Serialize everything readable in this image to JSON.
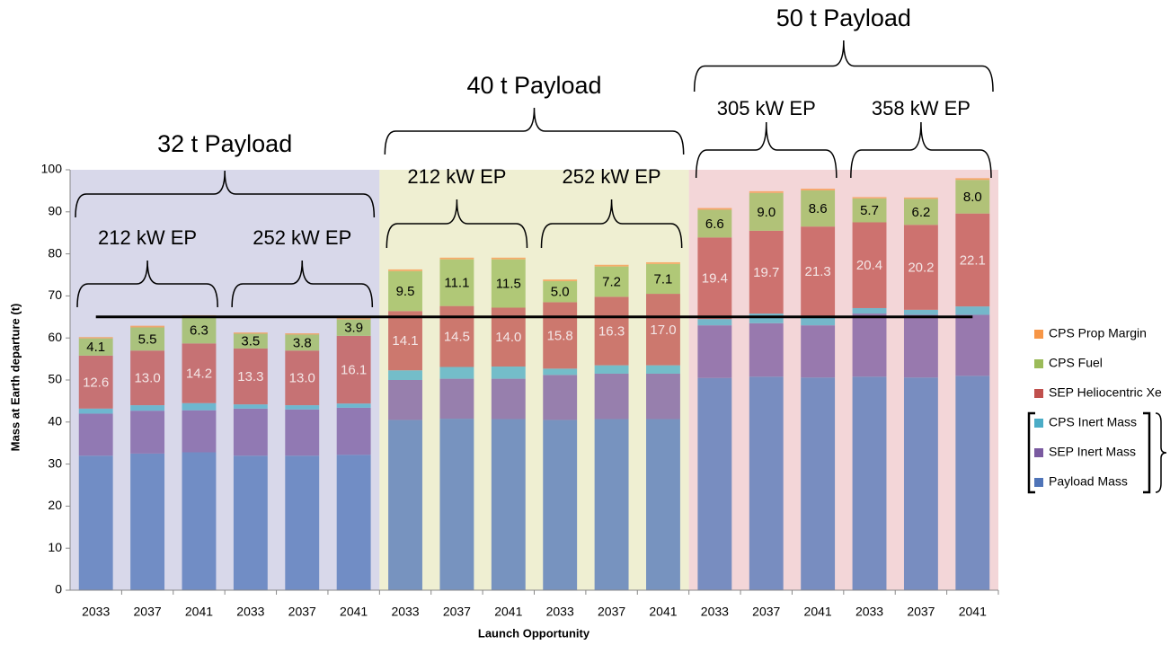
{
  "chart_data": {
    "type": "stacked_bar",
    "y_label": "Mass at Earth departure (t)",
    "x_label": "Launch Opportunity",
    "categories": [
      "2033",
      "2037",
      "2041",
      "2033",
      "2037",
      "2041",
      "2033",
      "2037",
      "2041",
      "2033",
      "2037",
      "2041",
      "2033",
      "2037",
      "2041",
      "2033",
      "2037",
      "2041"
    ],
    "ylim": [
      0,
      100
    ],
    "yticks": [
      0,
      10,
      20,
      30,
      40,
      50,
      60,
      70,
      80,
      90,
      100
    ],
    "reference_line": 65,
    "groups": [
      {
        "label": "32 t Payload",
        "color": "#d9d9ea",
        "subgroups": [
          "212 kW EP",
          "252 kW EP"
        ]
      },
      {
        "label": "40 t Payload",
        "color": "#efefd2",
        "subgroups": [
          "212 kW EP",
          "252 kW EP"
        ]
      },
      {
        "label": "50 t Payload",
        "color": "#f3d6d8",
        "subgroups": [
          "305 kW EP",
          "358 kW EP"
        ]
      }
    ],
    "series": [
      {
        "name": "Payload Mass",
        "color": "#4f74b8",
        "values": [
          32,
          32.5,
          32.8,
          32,
          32,
          32.2,
          40.5,
          40.8,
          40.7,
          40.5,
          40.7,
          40.7,
          50.5,
          50.8,
          50.6,
          50.8,
          50.6,
          51
        ]
      },
      {
        "name": "SEP Inert Mass",
        "color": "#7a5aa0",
        "values": [
          10,
          10.2,
          10,
          11.2,
          11,
          11.2,
          9.5,
          9.5,
          9.6,
          10.7,
          10.8,
          10.8,
          12.5,
          12.7,
          12.4,
          15,
          14.9,
          14.5
        ]
      },
      {
        "name": "CPS Inert Mass",
        "color": "#4bacc6",
        "values": [
          1.2,
          1.3,
          1.7,
          1,
          1,
          1,
          2.3,
          2.8,
          2.9,
          1.5,
          2,
          2,
          1.5,
          2.3,
          2.2,
          1.3,
          1.2,
          2
        ]
      },
      {
        "name": "SEP Heliocentric Xe",
        "color": "#c0504d",
        "values": [
          12.6,
          13,
          14.2,
          13.3,
          13,
          16.1,
          14.1,
          14.5,
          14,
          15.8,
          16.3,
          17,
          19.4,
          19.7,
          21.3,
          20.4,
          20.2,
          22.1
        ],
        "value_labels": [
          "12.6",
          "13.0",
          "14.2",
          "13.3",
          "13.0",
          "16.1",
          "14.1",
          "14.5",
          "14.0",
          "15.8",
          "16.3",
          "17.0",
          "19.4",
          "19.7",
          "21.3",
          "20.4",
          "20.2",
          "22.1"
        ]
      },
      {
        "name": "CPS Fuel",
        "color": "#9bbb59",
        "values": [
          4.1,
          5.5,
          6.3,
          3.5,
          3.8,
          3.9,
          9.5,
          11.1,
          11.5,
          5,
          7.2,
          7.1,
          6.6,
          9,
          8.6,
          5.7,
          6.2,
          8
        ],
        "value_labels": [
          "4.1",
          "5.5",
          "6.3",
          "3.5",
          "3.8",
          "3.9",
          "9.5",
          "11.1",
          "11.5",
          "5.0",
          "7.2",
          "7.1",
          "6.6",
          "9.0",
          "8.6",
          "5.7",
          "6.2",
          "8.0"
        ]
      },
      {
        "name": "CPS Prop Margin",
        "color": "#f79646",
        "values": [
          0.3,
          0.4,
          0.4,
          0.3,
          0.3,
          0.3,
          0.4,
          0.4,
          0.4,
          0.4,
          0.4,
          0.4,
          0.4,
          0.4,
          0.4,
          0.3,
          0.3,
          0.4
        ]
      }
    ]
  }
}
